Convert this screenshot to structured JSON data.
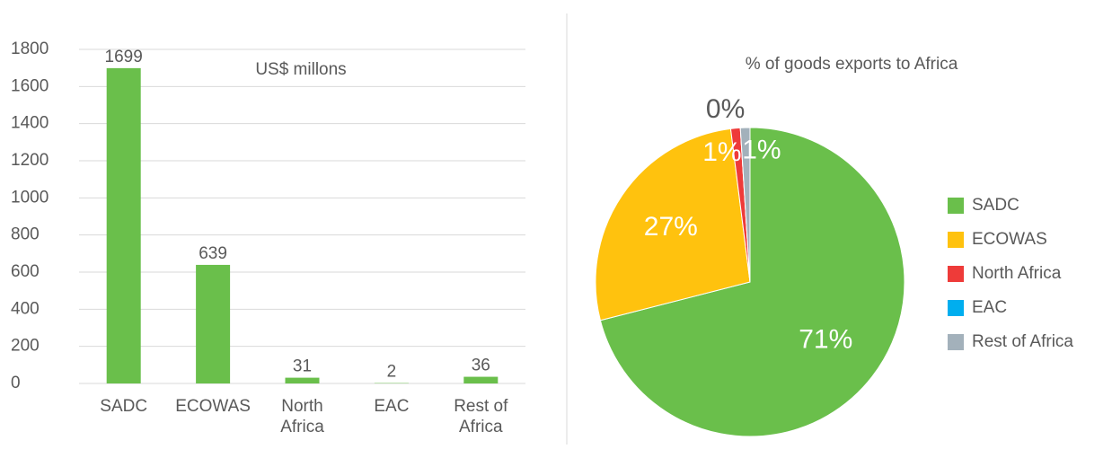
{
  "chart_data": [
    {
      "type": "bar",
      "annotation": "US$ millons",
      "categories": [
        "SADC",
        "ECOWAS",
        "North Africa",
        "EAC",
        "Rest of Africa"
      ],
      "values": [
        1699,
        639,
        31,
        2,
        36
      ],
      "color": "#6abf4b",
      "ylim": [
        0,
        1800
      ],
      "yticks": [
        0,
        200,
        400,
        600,
        800,
        1000,
        1200,
        1400,
        1600,
        1800
      ],
      "grid": true
    },
    {
      "type": "pie",
      "title": "% of goods exports to Africa",
      "categories": [
        "SADC",
        "ECOWAS",
        "North Africa",
        "EAC",
        "Rest of Africa"
      ],
      "values": [
        71,
        27,
        1,
        0,
        1
      ],
      "value_labels": [
        "71%",
        "27%",
        "1%",
        "0%",
        "1%"
      ],
      "colors": [
        "#6abf4b",
        "#ffc20e",
        "#ee3b39",
        "#00aeef",
        "#a3b1bb"
      ],
      "legend": "right"
    }
  ]
}
